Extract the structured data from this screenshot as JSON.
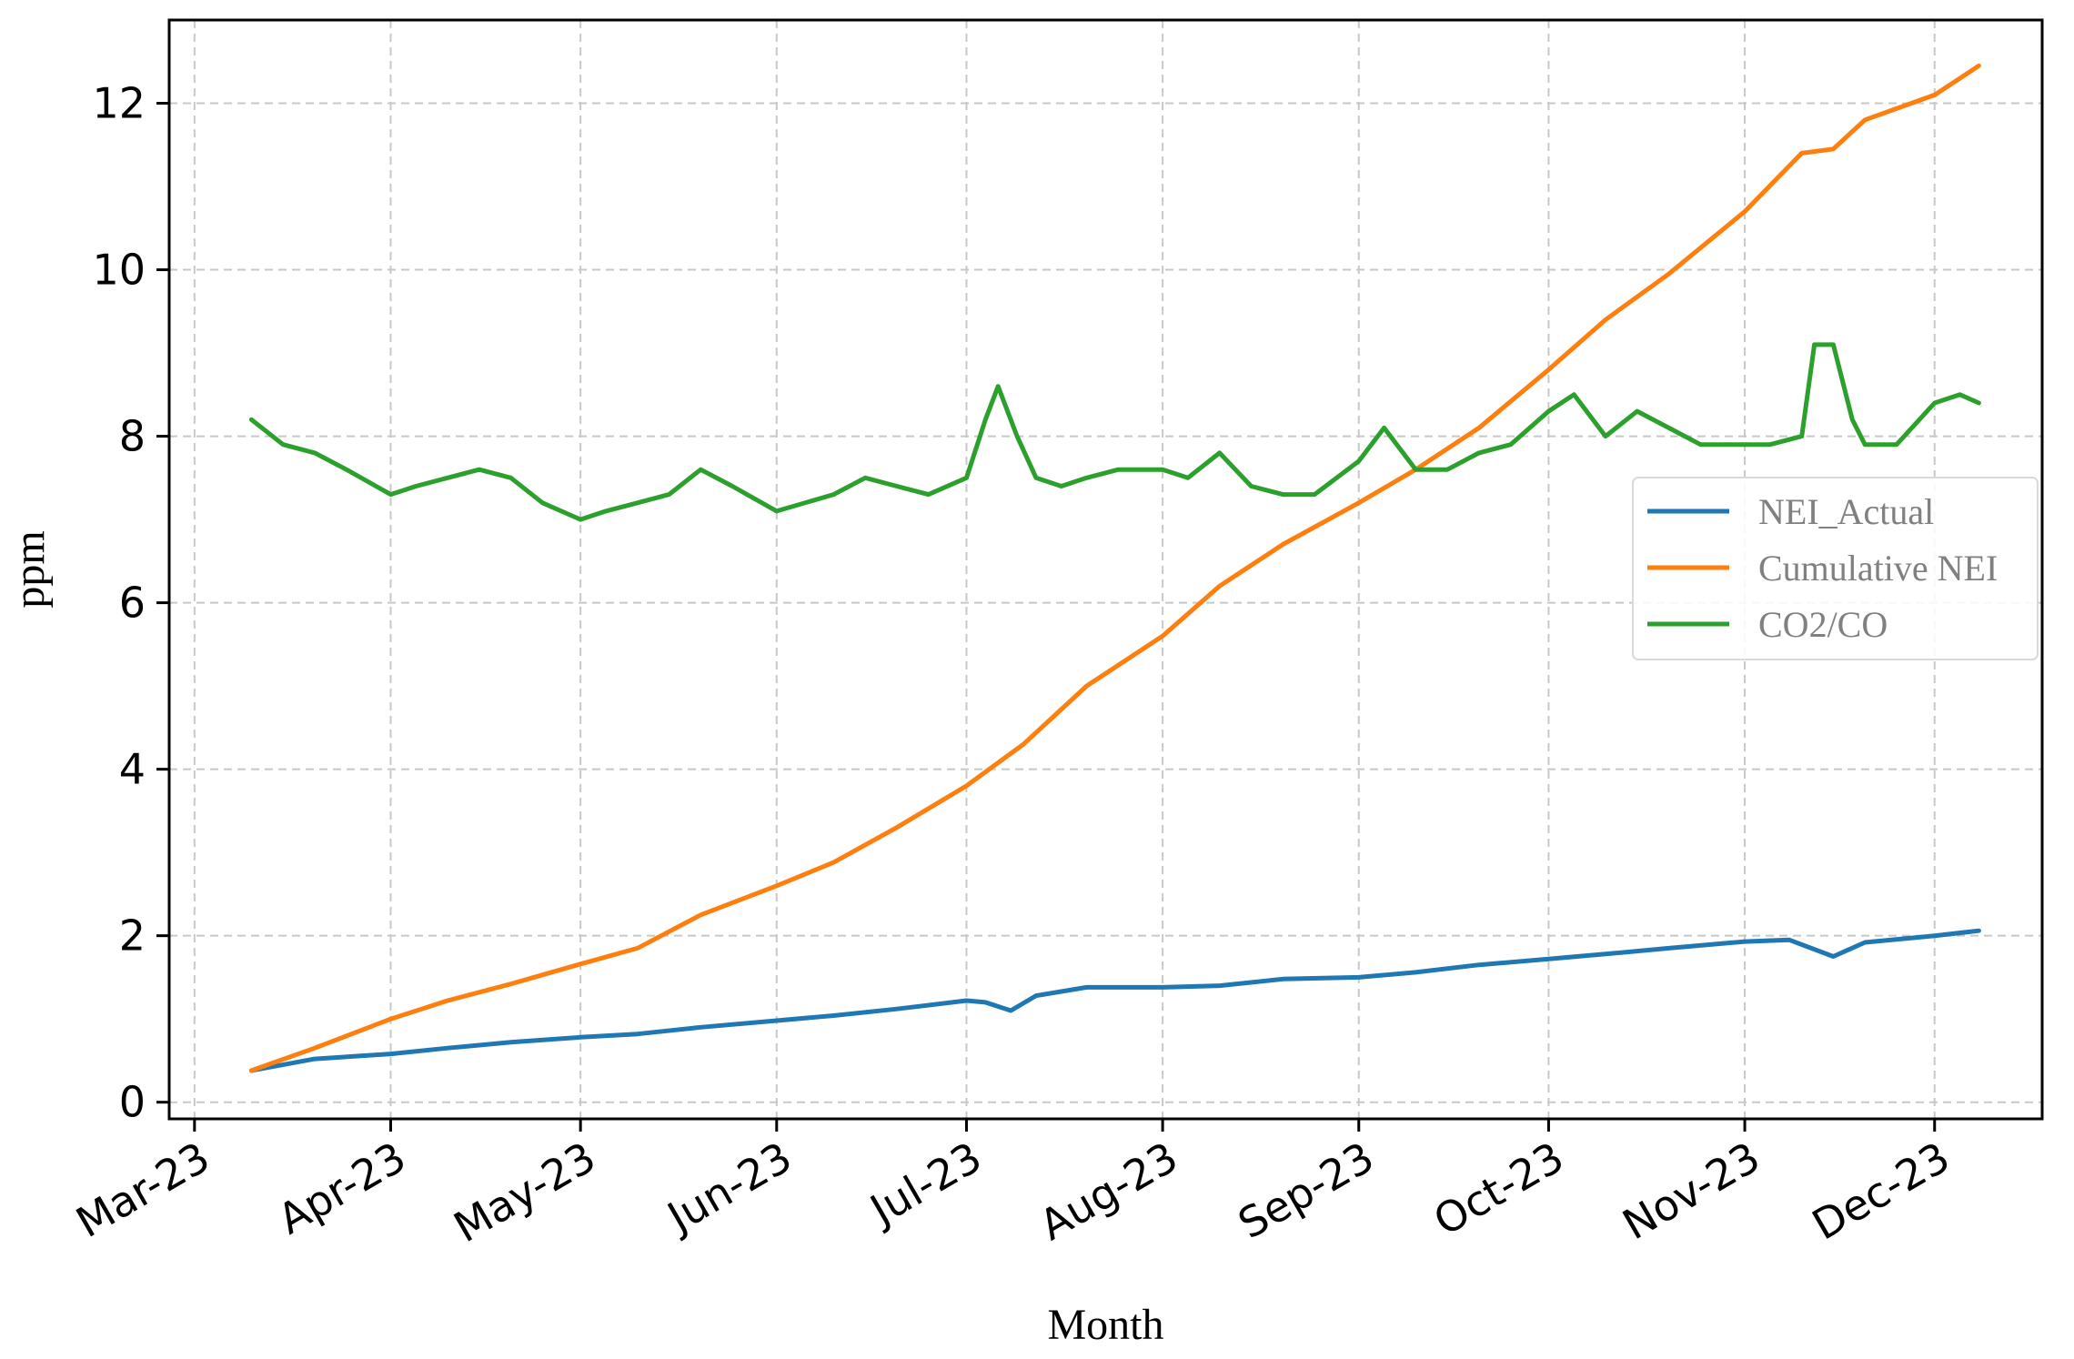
{
  "chart_data": {
    "type": "line",
    "title": "",
    "xlabel": "Month",
    "ylabel": "ppm",
    "x_ticks": [
      "Mar-23",
      "Apr-23",
      "May-23",
      "Jun-23",
      "Jul-23",
      "Aug-23",
      "Sep-23",
      "Oct-23",
      "Nov-23",
      "Dec-23"
    ],
    "x_tick_dates": [
      "2023-03-01",
      "2023-04-01",
      "2023-05-01",
      "2023-06-01",
      "2023-07-01",
      "2023-08-01",
      "2023-09-01",
      "2023-10-01",
      "2023-11-01",
      "2023-12-01"
    ],
    "y_ticks": [
      "0",
      "2",
      "4",
      "6",
      "8",
      "10",
      "12"
    ],
    "y_tick_values": [
      0,
      2,
      4,
      6,
      8,
      10,
      12
    ],
    "xlim": [
      "2023-02-25",
      "2023-12-18"
    ],
    "ylim": [
      -0.2,
      13.0
    ],
    "grid": true,
    "legend_position": "center-right",
    "series": [
      {
        "name": "NEI_Actual",
        "color": "#1f77b4",
        "x": [
          "2023-03-10",
          "2023-03-20",
          "2023-04-01",
          "2023-04-10",
          "2023-04-20",
          "2023-05-01",
          "2023-05-10",
          "2023-05-20",
          "2023-06-01",
          "2023-06-10",
          "2023-06-20",
          "2023-07-01",
          "2023-07-04",
          "2023-07-08",
          "2023-07-12",
          "2023-07-20",
          "2023-08-01",
          "2023-08-10",
          "2023-08-20",
          "2023-09-01",
          "2023-09-10",
          "2023-09-20",
          "2023-10-01",
          "2023-10-10",
          "2023-10-20",
          "2023-11-01",
          "2023-11-08",
          "2023-11-15",
          "2023-11-20",
          "2023-12-01",
          "2023-12-08"
        ],
        "values": [
          0.38,
          0.52,
          0.58,
          0.65,
          0.72,
          0.78,
          0.82,
          0.9,
          0.98,
          1.04,
          1.12,
          1.22,
          1.2,
          1.1,
          1.28,
          1.38,
          1.38,
          1.4,
          1.48,
          1.5,
          1.56,
          1.65,
          1.72,
          1.78,
          1.85,
          1.93,
          1.95,
          1.75,
          1.92,
          2.0,
          2.06
        ]
      },
      {
        "name": "Cumulative NEI",
        "color": "#ff7f0e",
        "x": [
          "2023-03-10",
          "2023-03-20",
          "2023-04-01",
          "2023-04-10",
          "2023-04-20",
          "2023-05-01",
          "2023-05-10",
          "2023-05-20",
          "2023-06-01",
          "2023-06-10",
          "2023-06-20",
          "2023-07-01",
          "2023-07-10",
          "2023-07-20",
          "2023-08-01",
          "2023-08-10",
          "2023-08-20",
          "2023-09-01",
          "2023-09-10",
          "2023-09-20",
          "2023-10-01",
          "2023-10-10",
          "2023-10-20",
          "2023-11-01",
          "2023-11-10",
          "2023-11-15",
          "2023-11-20",
          "2023-12-01",
          "2023-12-08"
        ],
        "values": [
          0.38,
          0.65,
          1.0,
          1.22,
          1.42,
          1.66,
          1.85,
          2.25,
          2.6,
          2.88,
          3.3,
          3.8,
          4.3,
          5.0,
          5.6,
          6.2,
          6.7,
          7.2,
          7.6,
          8.1,
          8.8,
          9.4,
          9.95,
          10.7,
          11.4,
          11.45,
          11.8,
          12.1,
          12.45
        ]
      },
      {
        "name": "CO2/CO",
        "color": "#2ca02c",
        "x": [
          "2023-03-10",
          "2023-03-15",
          "2023-03-20",
          "2023-03-25",
          "2023-04-01",
          "2023-04-05",
          "2023-04-10",
          "2023-04-15",
          "2023-04-20",
          "2023-04-25",
          "2023-05-01",
          "2023-05-05",
          "2023-05-10",
          "2023-05-15",
          "2023-05-20",
          "2023-05-25",
          "2023-06-01",
          "2023-06-10",
          "2023-06-15",
          "2023-06-20",
          "2023-06-25",
          "2023-07-01",
          "2023-07-04",
          "2023-07-06",
          "2023-07-09",
          "2023-07-12",
          "2023-07-16",
          "2023-07-20",
          "2023-07-25",
          "2023-08-01",
          "2023-08-05",
          "2023-08-10",
          "2023-08-15",
          "2023-08-20",
          "2023-08-25",
          "2023-09-01",
          "2023-09-05",
          "2023-09-10",
          "2023-09-15",
          "2023-09-20",
          "2023-09-25",
          "2023-10-01",
          "2023-10-05",
          "2023-10-10",
          "2023-10-15",
          "2023-10-20",
          "2023-10-25",
          "2023-11-01",
          "2023-11-05",
          "2023-11-10",
          "2023-11-12",
          "2023-11-15",
          "2023-11-18",
          "2023-11-20",
          "2023-11-25",
          "2023-12-01",
          "2023-12-05",
          "2023-12-08"
        ],
        "values": [
          8.2,
          7.9,
          7.8,
          7.6,
          7.3,
          7.4,
          7.5,
          7.6,
          7.5,
          7.2,
          7.0,
          7.1,
          7.2,
          7.3,
          7.6,
          7.4,
          7.1,
          7.3,
          7.5,
          7.4,
          7.3,
          7.5,
          8.2,
          8.6,
          8.0,
          7.5,
          7.4,
          7.5,
          7.6,
          7.6,
          7.5,
          7.8,
          7.4,
          7.3,
          7.3,
          7.7,
          8.1,
          7.6,
          7.6,
          7.8,
          7.9,
          8.3,
          8.5,
          8.0,
          8.3,
          8.1,
          7.9,
          7.9,
          7.9,
          8.0,
          9.1,
          9.1,
          8.2,
          7.9,
          7.9,
          8.4,
          8.5,
          8.4
        ]
      }
    ]
  }
}
